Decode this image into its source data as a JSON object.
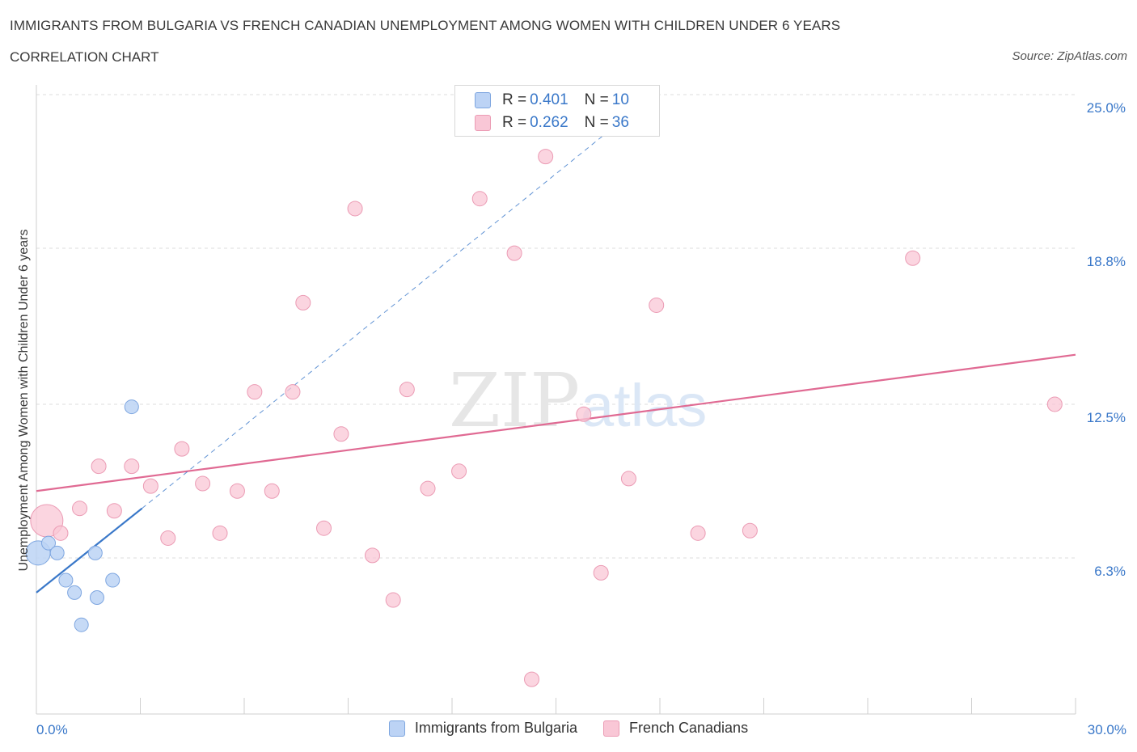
{
  "header": {
    "title": "IMMIGRANTS FROM BULGARIA VS FRENCH CANADIAN UNEMPLOYMENT AMONG WOMEN WITH CHILDREN UNDER 6 YEARS",
    "subtitle": "CORRELATION CHART",
    "source": "Source: ZipAtlas.com"
  },
  "colors": {
    "blue_fill": "#bcd3f5",
    "blue_stroke": "#7ea6e0",
    "blue_line": "#3a78c9",
    "pink_fill": "#f9c7d6",
    "pink_stroke": "#eb9bb4",
    "pink_line": "#e06a93",
    "axis_label_color": "#3a78c9",
    "grid": "#dcdcdc"
  },
  "legend": {
    "r_label": "R =",
    "n_label": "N =",
    "rows": [
      {
        "series": "Immigrants from Bulgaria",
        "r": "0.401",
        "n": "10"
      },
      {
        "series": "French Canadians",
        "r": "0.262",
        "n": "36"
      }
    ]
  },
  "chart_data": {
    "type": "scatter",
    "title": "IMMIGRANTS FROM BULGARIA VS FRENCH CANADIAN UNEMPLOYMENT AMONG WOMEN WITH CHILDREN UNDER 6 YEARS",
    "xlabel": "",
    "ylabel": "Unemployment Among Women with Children Under 6 years",
    "xlim": [
      0,
      30
    ],
    "ylim": [
      0,
      25
    ],
    "x_tick_labels": [
      "0.0%",
      "30.0%"
    ],
    "y_ticks": [
      6.3,
      12.5,
      18.8,
      25.0
    ],
    "y_tick_labels": [
      "6.3%",
      "12.5%",
      "18.8%",
      "25.0%"
    ],
    "watermark": {
      "zip": "ZIP",
      "atlas": "atlas"
    },
    "series": [
      {
        "name": "Immigrants from Bulgaria",
        "color": "#bcd3f5",
        "points": [
          {
            "x": 0.05,
            "y": 6.5,
            "size": "large"
          },
          {
            "x": 0.35,
            "y": 6.9
          },
          {
            "x": 0.6,
            "y": 6.5
          },
          {
            "x": 0.85,
            "y": 5.4
          },
          {
            "x": 1.1,
            "y": 4.9
          },
          {
            "x": 1.3,
            "y": 3.6
          },
          {
            "x": 1.7,
            "y": 6.5
          },
          {
            "x": 1.75,
            "y": 4.7
          },
          {
            "x": 2.2,
            "y": 5.4
          },
          {
            "x": 2.75,
            "y": 12.4
          }
        ],
        "trendline": {
          "x": [
            0,
            3.05
          ],
          "y": [
            4.9,
            8.3
          ],
          "extended_x": [
            3.05,
            16.5
          ],
          "extended_y": [
            8.3,
            23.5
          ]
        }
      },
      {
        "name": "French Canadians",
        "color": "#f9c7d6",
        "points": [
          {
            "x": 0.3,
            "y": 7.8,
            "size": "large"
          },
          {
            "x": 0.7,
            "y": 7.3
          },
          {
            "x": 1.25,
            "y": 8.3
          },
          {
            "x": 1.8,
            "y": 10.0
          },
          {
            "x": 2.25,
            "y": 8.2
          },
          {
            "x": 2.75,
            "y": 10.0
          },
          {
            "x": 3.3,
            "y": 9.2
          },
          {
            "x": 3.8,
            "y": 7.1
          },
          {
            "x": 4.2,
            "y": 10.7
          },
          {
            "x": 4.8,
            "y": 9.3
          },
          {
            "x": 5.3,
            "y": 7.3
          },
          {
            "x": 5.8,
            "y": 9.0
          },
          {
            "x": 6.3,
            "y": 13.0
          },
          {
            "x": 6.8,
            "y": 9.0
          },
          {
            "x": 7.4,
            "y": 13.0
          },
          {
            "x": 7.7,
            "y": 16.6
          },
          {
            "x": 8.3,
            "y": 7.5
          },
          {
            "x": 8.8,
            "y": 11.3
          },
          {
            "x": 9.2,
            "y": 20.4
          },
          {
            "x": 9.7,
            "y": 6.4
          },
          {
            "x": 10.3,
            "y": 4.6
          },
          {
            "x": 10.7,
            "y": 13.1
          },
          {
            "x": 11.3,
            "y": 9.1
          },
          {
            "x": 12.2,
            "y": 9.8
          },
          {
            "x": 12.8,
            "y": 20.8
          },
          {
            "x": 13.8,
            "y": 18.6
          },
          {
            "x": 14.3,
            "y": 1.4
          },
          {
            "x": 14.7,
            "y": 22.5
          },
          {
            "x": 15.8,
            "y": 12.1
          },
          {
            "x": 16.3,
            "y": 5.7
          },
          {
            "x": 17.1,
            "y": 9.5
          },
          {
            "x": 17.9,
            "y": 16.5
          },
          {
            "x": 19.1,
            "y": 7.3
          },
          {
            "x": 20.6,
            "y": 7.4
          },
          {
            "x": 25.3,
            "y": 18.4
          },
          {
            "x": 29.4,
            "y": 12.5
          }
        ],
        "trendline": {
          "x": [
            0,
            30
          ],
          "y": [
            9.0,
            14.5
          ]
        }
      }
    ]
  },
  "bottom_legend": [
    "Immigrants from Bulgaria",
    "French Canadians"
  ]
}
